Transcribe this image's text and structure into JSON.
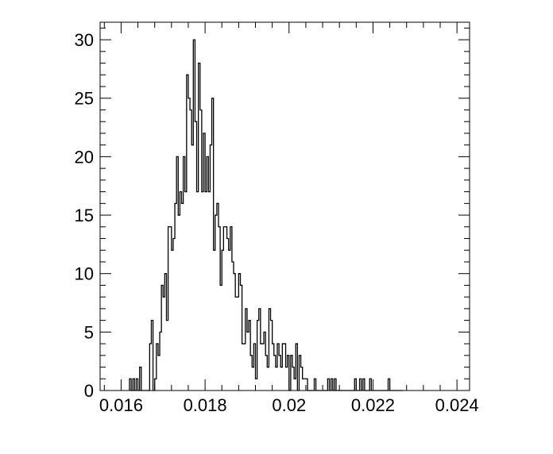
{
  "chart_data": {
    "type": "histogram",
    "title": "",
    "xlabel": "",
    "ylabel": "",
    "xlim": [
      0.0155,
      0.0243
    ],
    "ylim": [
      0,
      31.5
    ],
    "bin_width": 4e-05,
    "x_start": 0.0162,
    "x_ticks": [
      {
        "value": 0.016,
        "label": "0.016"
      },
      {
        "value": 0.018,
        "label": "0.018"
      },
      {
        "value": 0.02,
        "label": "0.02"
      },
      {
        "value": 0.022,
        "label": "0.022"
      },
      {
        "value": 0.024,
        "label": "0.024"
      }
    ],
    "y_ticks": [
      {
        "value": 0,
        "label": "0"
      },
      {
        "value": 5,
        "label": "5"
      },
      {
        "value": 10,
        "label": "10"
      },
      {
        "value": 15,
        "label": "15"
      },
      {
        "value": 20,
        "label": "20"
      },
      {
        "value": 25,
        "label": "25"
      },
      {
        "value": 30,
        "label": "30"
      }
    ],
    "counts": [
      1,
      0,
      1,
      0,
      1,
      0,
      2,
      0,
      0,
      0,
      0,
      0,
      4,
      6,
      0,
      1,
      4,
      3,
      5,
      9,
      8,
      10,
      6,
      14,
      14,
      12,
      13,
      16,
      20,
      15,
      17,
      16,
      20,
      17,
      27,
      25,
      24,
      21,
      30,
      23,
      17,
      28,
      24,
      17,
      22,
      17,
      20,
      17,
      21,
      25,
      12,
      15,
      16,
      14,
      9,
      12,
      14,
      14,
      13,
      12,
      14,
      11,
      10,
      8,
      8,
      10,
      9,
      4,
      4,
      7,
      5,
      6,
      3,
      2,
      4,
      1,
      6,
      7,
      4,
      4,
      5,
      3,
      2,
      7,
      6,
      4,
      3,
      2,
      4,
      3,
      2,
      4,
      4,
      2,
      3,
      0,
      3,
      2,
      1,
      4,
      0,
      3,
      2,
      1,
      1,
      1,
      0,
      0,
      0,
      0,
      1,
      0,
      0,
      0,
      0,
      0,
      0,
      0,
      1,
      0,
      1,
      0,
      1,
      0,
      0,
      0,
      0,
      0,
      0,
      0,
      0,
      0,
      0,
      0,
      1,
      0,
      0,
      1,
      0,
      1,
      0,
      0,
      0,
      1,
      0,
      0,
      0,
      0,
      0,
      0,
      0,
      0,
      0,
      0,
      1,
      0,
      0,
      0,
      0,
      0,
      0,
      0,
      0
    ],
    "line_color": "#000000",
    "grid": false
  }
}
